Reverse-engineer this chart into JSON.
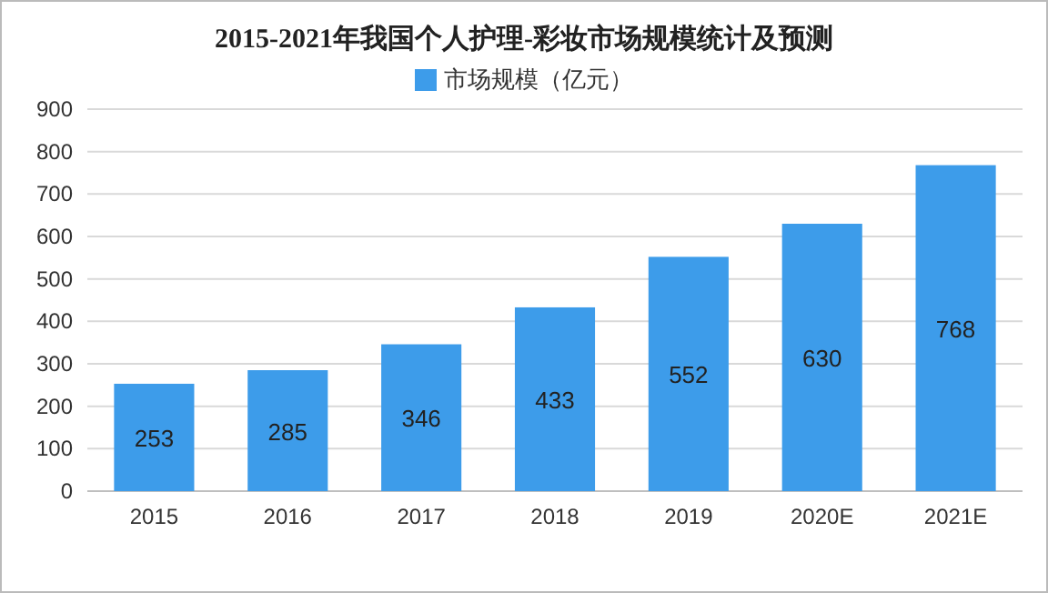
{
  "chart_data": {
    "type": "bar",
    "title": "2015-2021年我国个人护理-彩妆市场规模统计及预测",
    "categories": [
      "2015",
      "2016",
      "2017",
      "2018",
      "2019",
      "2020E",
      "2021E"
    ],
    "series": [
      {
        "name": "市场规模（亿元）",
        "color": "#3d9cea",
        "values": [
          253,
          285,
          346,
          433,
          552,
          630,
          768
        ]
      }
    ],
    "ylim": [
      0,
      900
    ],
    "yticks": [
      0,
      100,
      200,
      300,
      400,
      500,
      600,
      700,
      800,
      900
    ],
    "grid": "y",
    "legend": "top",
    "data_labels": true
  }
}
